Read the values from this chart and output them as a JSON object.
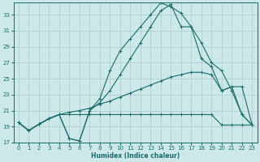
{
  "xlabel": "Humidex (Indice chaleur)",
  "bg_color": "#cce8e8",
  "grid_color": "#aacccc",
  "line_color": "#1a6b6b",
  "xlim": [
    -0.5,
    23.5
  ],
  "ylim": [
    17,
    34.5
  ],
  "yticks": [
    17,
    19,
    21,
    23,
    25,
    27,
    29,
    31,
    33
  ],
  "xticks": [
    0,
    1,
    2,
    3,
    4,
    5,
    6,
    7,
    8,
    9,
    10,
    11,
    12,
    13,
    14,
    15,
    16,
    17,
    18,
    19,
    20,
    21,
    22,
    23
  ],
  "s1_x": [
    0,
    1,
    2,
    3,
    4,
    5,
    6,
    7,
    8,
    9,
    10,
    11,
    12,
    13,
    14,
    15,
    16,
    17,
    18,
    19,
    20,
    21,
    22,
    23
  ],
  "s1_y": [
    19.5,
    18.5,
    19.3,
    20.0,
    20.5,
    20.5,
    20.5,
    20.5,
    20.5,
    20.5,
    20.5,
    20.5,
    20.5,
    20.5,
    20.5,
    20.5,
    20.5,
    20.5,
    20.5,
    20.5,
    19.2,
    19.2,
    19.2,
    19.2
  ],
  "s2_x": [
    0,
    1,
    2,
    3,
    4,
    5,
    6,
    7,
    8,
    9,
    10,
    11,
    12,
    13,
    14,
    15,
    16,
    17,
    18,
    19,
    20,
    21,
    22,
    23
  ],
  "s2_y": [
    19.5,
    18.5,
    19.3,
    20.0,
    20.5,
    20.8,
    21.0,
    21.3,
    21.8,
    22.2,
    22.7,
    23.2,
    23.7,
    24.2,
    24.7,
    25.2,
    25.5,
    25.8,
    25.8,
    25.5,
    23.5,
    24.0,
    24.0,
    19.2
  ],
  "s3_x": [
    0,
    1,
    2,
    3,
    4,
    5,
    6,
    7,
    8,
    9,
    10,
    11,
    12,
    13,
    14,
    15,
    16,
    17,
    18,
    19,
    20,
    21,
    22,
    23
  ],
  "s3_y": [
    19.5,
    18.5,
    19.3,
    20.0,
    20.5,
    17.5,
    17.2,
    21.0,
    22.5,
    26.0,
    28.5,
    30.0,
    31.5,
    33.0,
    34.5,
    34.0,
    33.2,
    31.5,
    27.5,
    26.5,
    23.5,
    24.0,
    20.5,
    19.2
  ],
  "s4_x": [
    0,
    1,
    2,
    3,
    4,
    5,
    6,
    7,
    8,
    9,
    10,
    11,
    12,
    13,
    14,
    15,
    16,
    17,
    18,
    19,
    20,
    21,
    22,
    23
  ],
  "s4_y": [
    19.5,
    18.5,
    19.3,
    20.0,
    20.5,
    17.5,
    17.2,
    21.0,
    22.0,
    23.5,
    25.5,
    27.5,
    29.5,
    31.5,
    33.5,
    34.3,
    31.5,
    31.5,
    29.5,
    27.0,
    26.0,
    23.5,
    20.5,
    19.2
  ]
}
